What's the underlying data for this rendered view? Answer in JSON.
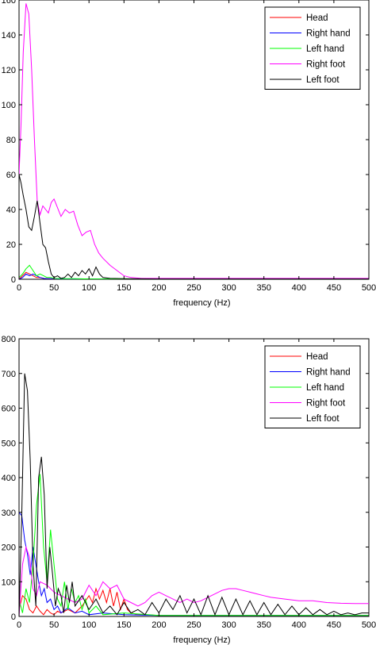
{
  "colors": {
    "Head": "#ff0000",
    "Right hand": "#0000ff",
    "Left hand": "#00ff00",
    "Right foot": "#ff00ff",
    "Left foot": "#000000"
  },
  "chart_data": [
    {
      "type": "line",
      "title": "",
      "xlabel": "frequency (Hz)",
      "ylabel": "",
      "xlim": [
        0,
        500
      ],
      "ylim": [
        0,
        160
      ],
      "xticks": [
        "0",
        "50",
        "100",
        "150",
        "200",
        "250",
        "300",
        "350",
        "400",
        "450",
        "500"
      ],
      "yticks": [
        "0",
        "20",
        "40",
        "60",
        "80",
        "100",
        "120",
        "140",
        "160"
      ],
      "legend_position": "top-right",
      "legend": [
        "Head",
        "Right hand",
        "Left hand",
        "Right foot",
        "Left foot"
      ],
      "series": [
        {
          "name": "Head",
          "x": [
            0,
            5,
            10,
            15,
            20,
            25,
            30,
            35,
            40,
            50,
            60,
            80,
            100,
            150,
            200,
            300,
            400,
            500
          ],
          "y": [
            0,
            2,
            4,
            3,
            2,
            1,
            1,
            0.5,
            0.3,
            0.2,
            0.2,
            0.2,
            0.2,
            0.1,
            0.1,
            0.1,
            0.1,
            0.1
          ]
        },
        {
          "name": "Right hand",
          "x": [
            0,
            5,
            10,
            15,
            20,
            25,
            30,
            35,
            40,
            50,
            60,
            80,
            100,
            150,
            200,
            300,
            400,
            500
          ],
          "y": [
            0,
            1,
            3,
            2,
            3,
            2,
            1,
            0.5,
            0.3,
            0.3,
            0.2,
            0.2,
            0.2,
            0.1,
            0.1,
            0.1,
            0.1,
            0.1
          ]
        },
        {
          "name": "Left hand",
          "x": [
            0,
            5,
            10,
            15,
            20,
            25,
            30,
            35,
            40,
            45,
            50,
            60,
            80,
            100,
            150,
            200,
            300,
            400,
            500
          ],
          "y": [
            1,
            3,
            6,
            8,
            5,
            2,
            3,
            2,
            1,
            1,
            0.5,
            0.3,
            0.3,
            0.2,
            0.1,
            0.1,
            0.1,
            0.1,
            0.1
          ]
        },
        {
          "name": "Right foot",
          "x": [
            0,
            3,
            6,
            10,
            14,
            18,
            22,
            26,
            30,
            34,
            38,
            42,
            46,
            50,
            55,
            60,
            66,
            72,
            78,
            84,
            90,
            96,
            102,
            108,
            114,
            120,
            130,
            140,
            150,
            160,
            175,
            200,
            250,
            300,
            400,
            500
          ],
          "y": [
            60,
            90,
            130,
            158,
            152,
            120,
            80,
            45,
            37,
            42,
            40,
            38,
            44,
            46,
            41,
            36,
            40,
            38,
            39,
            31,
            25,
            27,
            28,
            20,
            15,
            12,
            8,
            5,
            2,
            1,
            0.5,
            0.5,
            0.5,
            0.5,
            0.5,
            0.5
          ]
        },
        {
          "name": "Left foot",
          "x": [
            0,
            3,
            6,
            10,
            14,
            18,
            22,
            26,
            30,
            34,
            38,
            42,
            46,
            50,
            55,
            60,
            65,
            70,
            75,
            80,
            85,
            90,
            95,
            100,
            105,
            110,
            115,
            120,
            130,
            150,
            200,
            300,
            400,
            500
          ],
          "y": [
            60,
            55,
            48,
            40,
            30,
            28,
            36,
            45,
            32,
            20,
            18,
            10,
            3,
            1,
            2,
            0.5,
            1,
            3,
            1,
            4,
            2,
            5,
            3,
            6,
            2,
            7,
            3,
            1,
            0.5,
            0.3,
            0.2,
            0.2,
            0.2,
            0.2
          ]
        }
      ]
    },
    {
      "type": "line",
      "title": "",
      "xlabel": "frequency (Hz)",
      "ylabel": "",
      "xlim": [
        0,
        500
      ],
      "ylim": [
        0,
        800
      ],
      "xticks": [
        "0",
        "50",
        "100",
        "150",
        "200",
        "250",
        "300",
        "350",
        "400",
        "450",
        "500"
      ],
      "yticks": [
        "0",
        "100",
        "200",
        "300",
        "400",
        "500",
        "600",
        "700",
        "800"
      ],
      "legend_position": "top-right",
      "legend": [
        "Head",
        "Right hand",
        "Left hand",
        "Right foot",
        "Left foot"
      ],
      "series": [
        {
          "name": "Head",
          "x": [
            0,
            5,
            10,
            15,
            20,
            25,
            30,
            35,
            40,
            45,
            50,
            55,
            60,
            70,
            80,
            90,
            100,
            105,
            110,
            115,
            120,
            125,
            130,
            135,
            140,
            145,
            150,
            155,
            160,
            170,
            180,
            200,
            250,
            300,
            400,
            500
          ],
          "y": [
            20,
            60,
            50,
            20,
            10,
            30,
            15,
            5,
            20,
            10,
            5,
            15,
            10,
            20,
            10,
            30,
            60,
            40,
            80,
            50,
            75,
            40,
            80,
            30,
            70,
            20,
            50,
            20,
            10,
            5,
            5,
            3,
            3,
            3,
            3,
            3
          ]
        },
        {
          "name": "Right hand",
          "x": [
            0,
            4,
            8,
            12,
            16,
            20,
            24,
            28,
            32,
            36,
            40,
            45,
            50,
            55,
            60,
            70,
            80,
            90,
            100,
            120,
            150,
            200,
            250,
            300,
            400,
            500
          ],
          "y": [
            300,
            290,
            220,
            180,
            120,
            200,
            150,
            100,
            60,
            80,
            40,
            50,
            20,
            30,
            10,
            25,
            10,
            15,
            5,
            10,
            5,
            3,
            3,
            3,
            3,
            3
          ]
        },
        {
          "name": "Left hand",
          "x": [
            0,
            5,
            10,
            15,
            20,
            25,
            30,
            35,
            40,
            45,
            50,
            55,
            60,
            65,
            70,
            75,
            80,
            85,
            90,
            95,
            100,
            110,
            120,
            150,
            200,
            250,
            300,
            400,
            500
          ],
          "y": [
            50,
            10,
            80,
            40,
            150,
            320,
            410,
            200,
            100,
            250,
            150,
            50,
            30,
            100,
            20,
            80,
            40,
            60,
            20,
            50,
            10,
            30,
            5,
            10,
            3,
            3,
            3,
            3,
            3
          ]
        },
        {
          "name": "Right foot",
          "x": [
            0,
            5,
            10,
            15,
            20,
            25,
            30,
            40,
            50,
            60,
            70,
            80,
            90,
            100,
            110,
            120,
            130,
            140,
            150,
            160,
            170,
            180,
            190,
            200,
            210,
            220,
            230,
            240,
            250,
            260,
            270,
            280,
            290,
            300,
            310,
            320,
            330,
            340,
            350,
            360,
            380,
            400,
            420,
            440,
            460,
            480,
            500
          ],
          "y": [
            0,
            150,
            200,
            170,
            80,
            60,
            100,
            90,
            70,
            60,
            50,
            40,
            50,
            90,
            60,
            100,
            80,
            90,
            50,
            40,
            30,
            40,
            60,
            70,
            60,
            50,
            40,
            50,
            40,
            45,
            55,
            65,
            75,
            80,
            80,
            75,
            70,
            65,
            60,
            55,
            50,
            45,
            45,
            40,
            38,
            37,
            37
          ]
        },
        {
          "name": "Left foot",
          "x": [
            0,
            4,
            8,
            12,
            16,
            20,
            24,
            28,
            32,
            36,
            40,
            44,
            48,
            52,
            56,
            60,
            64,
            68,
            72,
            76,
            80,
            90,
            100,
            110,
            120,
            130,
            140,
            150,
            160,
            170,
            180,
            190,
            200,
            210,
            220,
            230,
            240,
            250,
            260,
            270,
            280,
            290,
            300,
            310,
            320,
            330,
            340,
            350,
            360,
            370,
            380,
            390,
            400,
            410,
            420,
            430,
            440,
            450,
            460,
            470,
            480,
            490,
            500
          ],
          "y": [
            0,
            300,
            700,
            650,
            450,
            150,
            30,
            400,
            460,
            350,
            80,
            200,
            120,
            30,
            80,
            60,
            10,
            90,
            40,
            100,
            30,
            60,
            20,
            50,
            10,
            30,
            5,
            40,
            10,
            20,
            5,
            40,
            10,
            50,
            20,
            60,
            10,
            50,
            5,
            60,
            5,
            55,
            5,
            50,
            5,
            45,
            5,
            40,
            5,
            35,
            5,
            30,
            5,
            25,
            5,
            20,
            5,
            15,
            5,
            10,
            5,
            10,
            10
          ]
        }
      ]
    }
  ]
}
